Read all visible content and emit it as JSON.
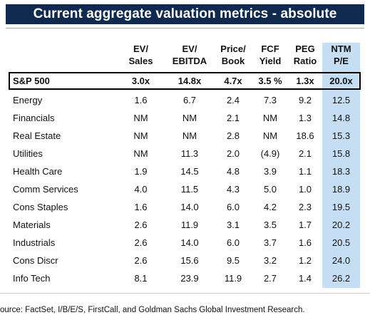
{
  "title": "Current aggregate valuation metrics - absolute",
  "headers": [
    {
      "line1": "EV/",
      "line2": "Sales"
    },
    {
      "line1": "EV/",
      "line2": "EBITDA"
    },
    {
      "line1": "Price/",
      "line2": "Book"
    },
    {
      "line1": "FCF",
      "line2": "Yield"
    },
    {
      "line1": "PEG",
      "line2": "Ratio"
    },
    {
      "line1": "NTM",
      "line2": "P/E"
    }
  ],
  "sp500": {
    "label": "S&P 500",
    "values": [
      "3.0x",
      "14.8x",
      "4.7x",
      "3.5 %",
      "1.3x",
      "20.0x"
    ]
  },
  "rows": [
    {
      "label": "Energy",
      "values": [
        "1.6",
        "6.7",
        "2.4",
        "7.3",
        "9.2",
        "12.5"
      ]
    },
    {
      "label": "Financials",
      "values": [
        "NM",
        "NM",
        "2.1",
        "NM",
        "1.3",
        "14.8"
      ]
    },
    {
      "label": "Real Estate",
      "values": [
        "NM",
        "NM",
        "2.8",
        "NM",
        "18.6",
        "15.3"
      ]
    },
    {
      "label": "Utilities",
      "values": [
        "NM",
        "11.3",
        "2.0",
        "(4.9)",
        "2.1",
        "15.8"
      ]
    },
    {
      "label": "Health Care",
      "values": [
        "1.9",
        "14.5",
        "4.8",
        "3.9",
        "1.1",
        "18.3"
      ]
    },
    {
      "label": "Comm Services",
      "values": [
        "4.0",
        "11.5",
        "4.3",
        "5.0",
        "1.0",
        "18.9"
      ]
    },
    {
      "label": "Cons Staples",
      "values": [
        "1.6",
        "14.0",
        "6.0",
        "4.2",
        "2.3",
        "19.5"
      ]
    },
    {
      "label": "Materials",
      "values": [
        "2.6",
        "11.9",
        "3.1",
        "3.5",
        "1.7",
        "20.2"
      ]
    },
    {
      "label": "Industrials",
      "values": [
        "2.6",
        "14.0",
        "6.0",
        "3.7",
        "1.6",
        "20.5"
      ]
    },
    {
      "label": "Cons Discr",
      "values": [
        "2.6",
        "15.6",
        "9.5",
        "3.2",
        "1.2",
        "24.0"
      ]
    },
    {
      "label": "Info Tech",
      "values": [
        "8.1",
        "23.9",
        "11.9",
        "2.7",
        "1.4",
        "26.2"
      ]
    }
  ],
  "source": "ource: FactSet, I/B/E/S, FirstCall, and Goldman Sachs Global Investment Research.",
  "colors": {
    "title_bg": "#10294f",
    "highlight": "#c5def4"
  }
}
